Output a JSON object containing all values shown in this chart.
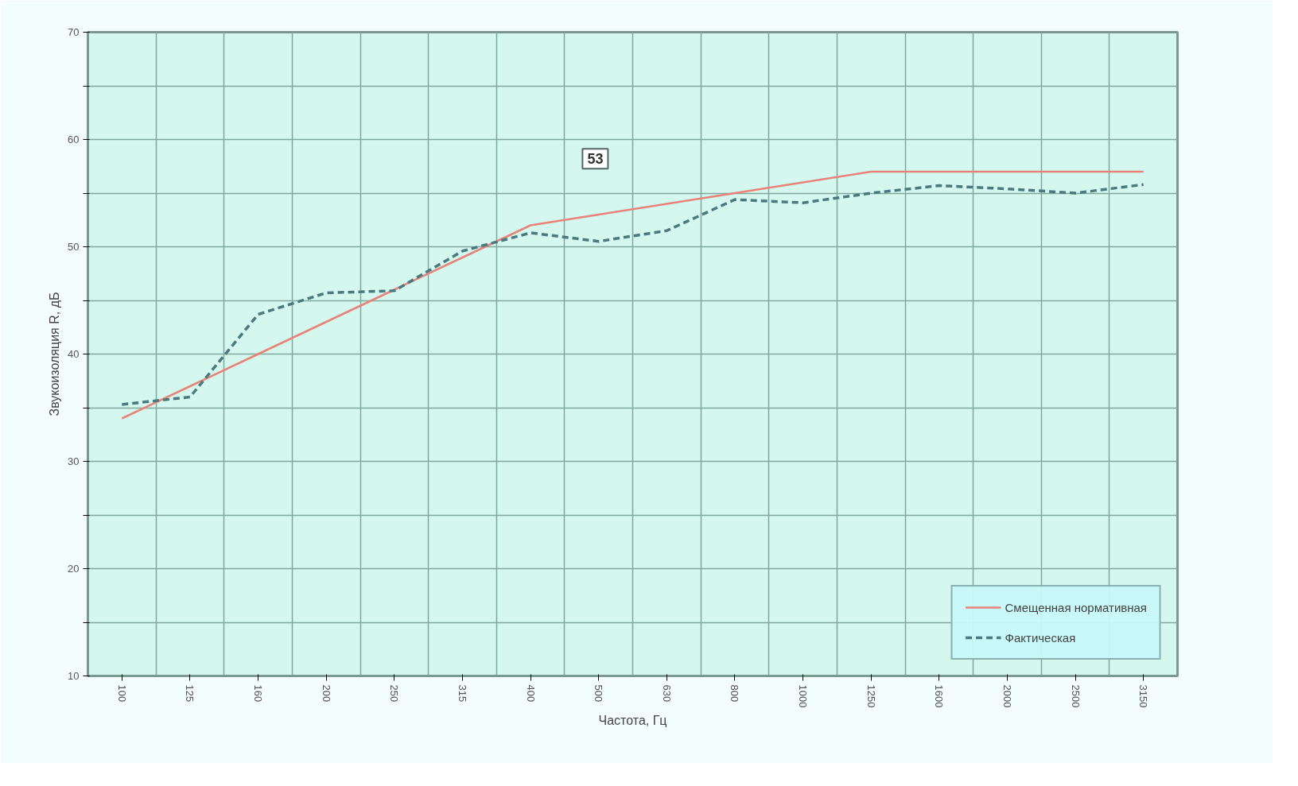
{
  "chart_data": {
    "type": "line",
    "xlabel": "Частота, Гц",
    "ylabel": "Звукоизоляция R, дБ",
    "categories": [
      "100",
      "125",
      "160",
      "200",
      "250",
      "315",
      "400",
      "500",
      "630",
      "800",
      "1000",
      "1250",
      "1600",
      "2000",
      "2500",
      "3150"
    ],
    "series": [
      {
        "name": "Смещенная нормативная",
        "color": "#e8837a",
        "line_style": "solid",
        "values": [
          34,
          37,
          40,
          43,
          46,
          49,
          52,
          53,
          54,
          55,
          56,
          57,
          57,
          57,
          57,
          57
        ]
      },
      {
        "name": "Фактическая",
        "color": "#4a7a80",
        "line_style": "dashed",
        "values": [
          35.3,
          36.0,
          43.7,
          45.7,
          45.9,
          49.6,
          51.3,
          50.5,
          51.5,
          54.4,
          54.1,
          55.0,
          55.7,
          55.4,
          55.0,
          55.8
        ]
      }
    ],
    "ylim": [
      10,
      70
    ],
    "yticks": [
      10,
      {
        "value": 15,
        "label": null
      },
      20,
      {
        "value": 25,
        "label": null
      },
      30,
      {
        "value": 35,
        "label": null
      },
      40,
      {
        "value": 45,
        "label": null
      },
      50,
      {
        "value": 55,
        "label": null
      },
      60,
      {
        "value": 65,
        "label": null
      },
      70
    ],
    "annotations": [
      "53"
    ],
    "grid": true,
    "legend": "bottom right",
    "marker": "none"
  }
}
